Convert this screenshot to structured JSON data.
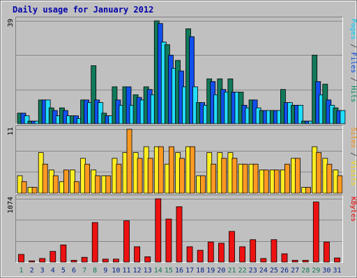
{
  "chart_data": [
    {
      "type": "bar",
      "title": "Daily usage for January 2012",
      "ylabel_parts": [
        {
          "text": "Pages",
          "color": "#00ccff"
        },
        {
          "text": " / ",
          "color": "#333333"
        },
        {
          "text": "Files",
          "color": "#0044dd"
        },
        {
          "text": " / ",
          "color": "#333333"
        },
        {
          "text": "Hits",
          "color": "#008a60"
        }
      ],
      "ymax_label": "39",
      "ylim": [
        0,
        39
      ],
      "grid": true,
      "categories": [
        "1",
        "2",
        "3",
        "4",
        "5",
        "6",
        "7",
        "8",
        "9",
        "10",
        "11",
        "12",
        "13",
        "14",
        "15",
        "16",
        "17",
        "18",
        "19",
        "20",
        "21",
        "22",
        "23",
        "24",
        "25",
        "26",
        "27",
        "28",
        "29",
        "30",
        "31"
      ],
      "series": [
        {
          "name": "Hits",
          "color": "#117a5a",
          "values": [
            4,
            1,
            9,
            6,
            6,
            3,
            9,
            22,
            4,
            14,
            14,
            11,
            14,
            39,
            30,
            24,
            36,
            8,
            17,
            17,
            17,
            12,
            9,
            5,
            5,
            13,
            7,
            1,
            26,
            15,
            6
          ]
        },
        {
          "name": "Files",
          "color": "#1150ee",
          "values": [
            4,
            1,
            9,
            5,
            5,
            3,
            9,
            9,
            3,
            9,
            14,
            10,
            13,
            38,
            26,
            20,
            33,
            8,
            16,
            13,
            12,
            7,
            9,
            5,
            5,
            8,
            7,
            1,
            16,
            9,
            5
          ]
        },
        {
          "name": "Pages",
          "color": "#22ddff",
          "values": [
            3,
            1,
            9,
            3,
            3,
            2,
            8,
            8,
            3,
            7,
            7,
            9,
            11,
            31,
            21,
            14,
            14,
            7,
            11,
            12,
            12,
            6,
            6,
            5,
            5,
            8,
            7,
            1,
            11,
            7,
            5
          ]
        }
      ]
    },
    {
      "type": "bar",
      "ylabel_parts": [
        {
          "text": "Sites",
          "color": "#ff8800"
        },
        {
          "text": " / ",
          "color": "#333333"
        },
        {
          "text": "Visits",
          "color": "#ffdd00"
        }
      ],
      "ymax_label": "11",
      "ylim": [
        0,
        11
      ],
      "grid": true,
      "categories": [
        "1",
        "2",
        "3",
        "4",
        "5",
        "6",
        "7",
        "8",
        "9",
        "10",
        "11",
        "12",
        "13",
        "14",
        "15",
        "16",
        "17",
        "18",
        "19",
        "20",
        "21",
        "22",
        "23",
        "24",
        "25",
        "26",
        "27",
        "28",
        "29",
        "30",
        "31"
      ],
      "series": [
        {
          "name": "Visits",
          "color": "#ffee22",
          "values": [
            3,
            1,
            7,
            4,
            2,
            4,
            6,
            4,
            3,
            6,
            7,
            7,
            8,
            8,
            5,
            7,
            8,
            3,
            7,
            7,
            7,
            5,
            5,
            4,
            4,
            4,
            6,
            1,
            8,
            6,
            4
          ]
        },
        {
          "name": "Sites",
          "color": "#ff9922",
          "values": [
            2,
            1,
            5,
            3,
            4,
            2,
            5,
            3,
            3,
            5,
            11,
            6,
            6,
            8,
            8,
            6,
            8,
            3,
            5,
            6,
            6,
            5,
            5,
            4,
            4,
            5,
            6,
            1,
            7,
            5,
            3
          ]
        }
      ]
    },
    {
      "type": "bar",
      "ylabel_parts": [
        {
          "text": "KBytes",
          "color": "#ee0000"
        }
      ],
      "ymax_label": "1074",
      "ylim": [
        0,
        1074
      ],
      "grid": true,
      "categories": [
        "1",
        "2",
        "3",
        "4",
        "5",
        "6",
        "7",
        "8",
        "9",
        "10",
        "11",
        "12",
        "13",
        "14",
        "15",
        "16",
        "17",
        "18",
        "19",
        "20",
        "21",
        "22",
        "23",
        "24",
        "25",
        "26",
        "27",
        "28",
        "29",
        "30",
        "31"
      ],
      "series": [
        {
          "name": "KBytes",
          "color": "#ee1111",
          "values": [
            130,
            20,
            60,
            180,
            290,
            30,
            80,
            670,
            50,
            50,
            700,
            260,
            90,
            1074,
            730,
            940,
            260,
            200,
            340,
            320,
            520,
            260,
            380,
            60,
            380,
            140,
            30,
            30,
            1020,
            340,
            70
          ]
        }
      ]
    }
  ],
  "x_labels": [
    {
      "text": "1",
      "color": "#117a5a"
    },
    {
      "text": "2",
      "color": "#002288"
    },
    {
      "text": "3",
      "color": "#002288"
    },
    {
      "text": "4",
      "color": "#002288"
    },
    {
      "text": "5",
      "color": "#002288"
    },
    {
      "text": "6",
      "color": "#002288"
    },
    {
      "text": "7",
      "color": "#117a5a"
    },
    {
      "text": "8",
      "color": "#117a5a"
    },
    {
      "text": "9",
      "color": "#002288"
    },
    {
      "text": "10",
      "color": "#002288"
    },
    {
      "text": "11",
      "color": "#002288"
    },
    {
      "text": "12",
      "color": "#002288"
    },
    {
      "text": "13",
      "color": "#002288"
    },
    {
      "text": "14",
      "color": "#117a5a"
    },
    {
      "text": "15",
      "color": "#117a5a"
    },
    {
      "text": "16",
      "color": "#002288"
    },
    {
      "text": "17",
      "color": "#002288"
    },
    {
      "text": "18",
      "color": "#002288"
    },
    {
      "text": "19",
      "color": "#002288"
    },
    {
      "text": "20",
      "color": "#002288"
    },
    {
      "text": "21",
      "color": "#117a5a"
    },
    {
      "text": "22",
      "color": "#117a5a"
    },
    {
      "text": "23",
      "color": "#002288"
    },
    {
      "text": "24",
      "color": "#002288"
    },
    {
      "text": "25",
      "color": "#002288"
    },
    {
      "text": "26",
      "color": "#002288"
    },
    {
      "text": "27",
      "color": "#002288"
    },
    {
      "text": "28",
      "color": "#117a5a"
    },
    {
      "text": "29",
      "color": "#117a5a"
    },
    {
      "text": "30",
      "color": "#002288"
    },
    {
      "text": "31",
      "color": "#002288"
    }
  ],
  "colors": {
    "background": "#c0c0c0",
    "plot_background": "#c0c0c0",
    "grid": "#888888",
    "title": "#0000aa",
    "tick_label": "#000000",
    "border_dark": "#808080",
    "border_light": "#ffffff"
  }
}
